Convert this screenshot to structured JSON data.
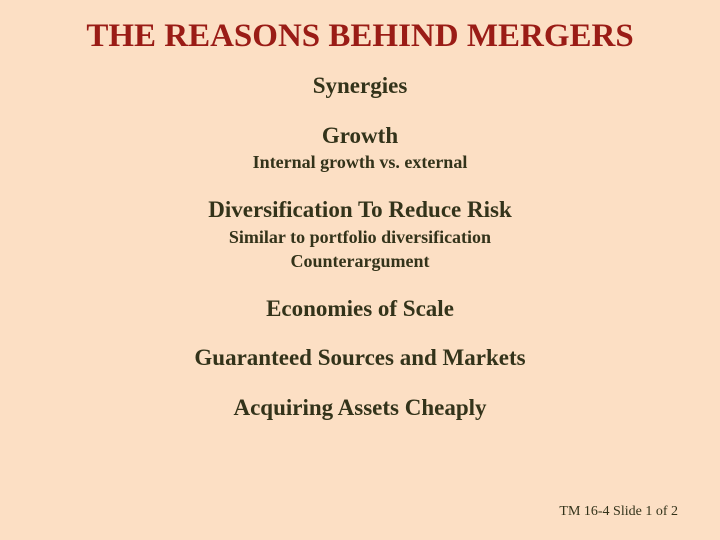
{
  "background_color": "#fcdfc4",
  "title_color": "#9a1c16",
  "text_color": "#33331a",
  "font_family": "Times New Roman",
  "title_fontsize": 33,
  "heading_fontsize": 23,
  "sub_fontsize": 18,
  "footer_fontsize": 14,
  "slide": {
    "title": "THE REASONS BEHIND MERGERS",
    "sections": [
      {
        "heading": "Synergies",
        "subs": []
      },
      {
        "heading": "Growth",
        "subs": [
          "Internal growth vs. external"
        ]
      },
      {
        "heading": "Diversification To Reduce Risk",
        "subs": [
          "Similar to portfolio diversification",
          "Counterargument"
        ]
      },
      {
        "heading": "Economies of Scale",
        "subs": []
      },
      {
        "heading": "Guaranteed Sources and Markets",
        "subs": []
      },
      {
        "heading": "Acquiring Assets Cheaply",
        "subs": []
      }
    ],
    "footer": "TM 16-4  Slide 1 of 2"
  }
}
